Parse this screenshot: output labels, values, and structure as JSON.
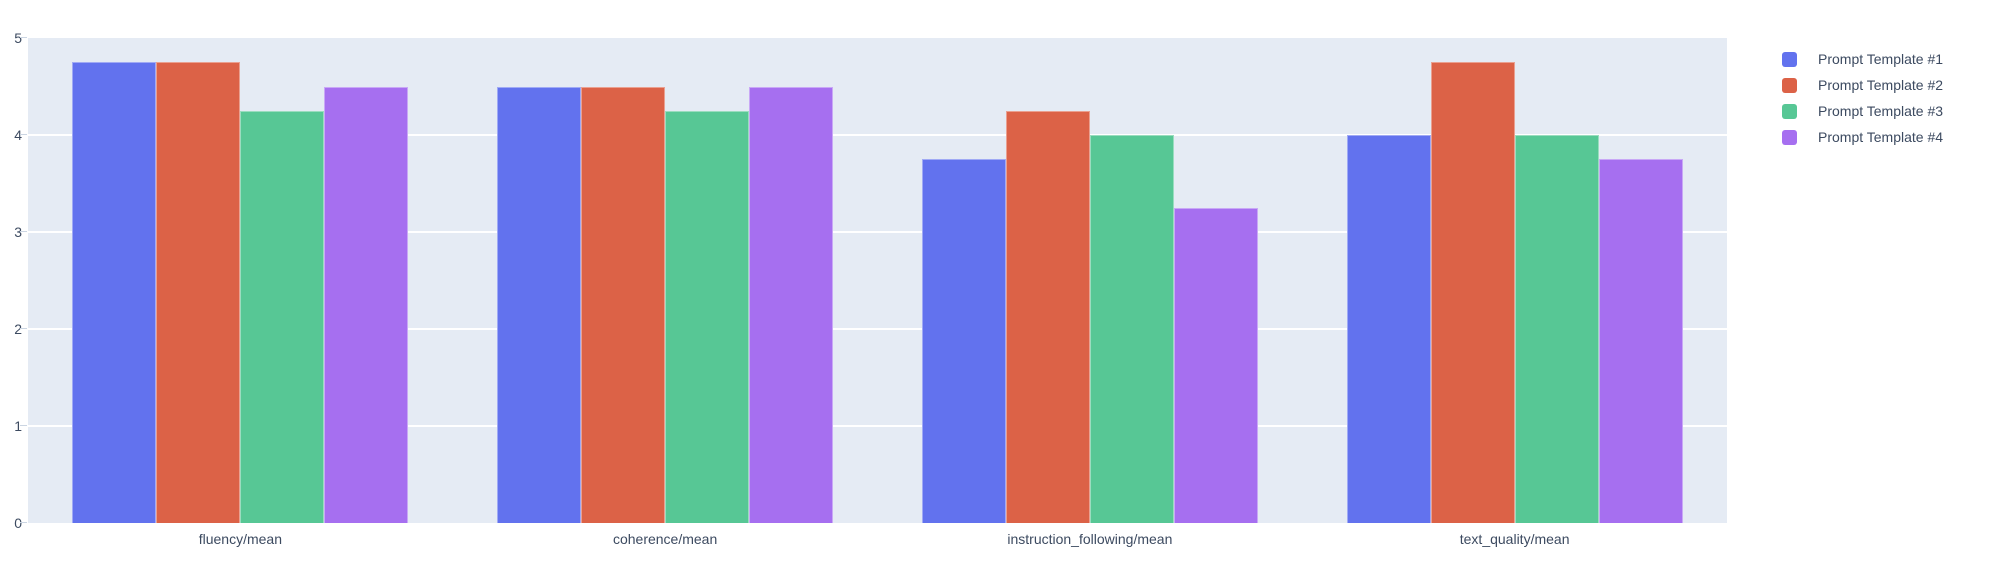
{
  "chart_data": {
    "type": "bar",
    "title": "",
    "categories": [
      "fluency/mean",
      "coherence/mean",
      "instruction_following/mean",
      "text_quality/mean"
    ],
    "series": [
      {
        "name": "Prompt Template #1",
        "color": "#6272EE",
        "values": [
          4.75,
          4.5,
          3.75,
          4.0
        ]
      },
      {
        "name": "Prompt Template #2",
        "color": "#DC6247",
        "values": [
          4.75,
          4.5,
          4.25,
          4.75
        ]
      },
      {
        "name": "Prompt Template #3",
        "color": "#57C795",
        "values": [
          4.25,
          4.25,
          4.0,
          4.0
        ]
      },
      {
        "name": "Prompt Template #4",
        "color": "#A66FF0",
        "values": [
          4.5,
          4.5,
          3.25,
          3.75
        ]
      }
    ],
    "xlabel": "",
    "ylabel": "",
    "ylim": [
      0,
      5
    ],
    "yticks": [
      0,
      1,
      2,
      3,
      4,
      5
    ],
    "gridline_values": [
      1,
      2,
      3,
      4
    ],
    "grid": true,
    "legend_position": "right",
    "colors": {
      "plot_background": "#E5EBF4",
      "gridline": "#FFFFFF",
      "tick_mark": "#CBD5E2",
      "axis_text": "#3C4A60",
      "page_background": "#FFFFFF"
    }
  },
  "layout_hints": {
    "barmode": "group"
  }
}
